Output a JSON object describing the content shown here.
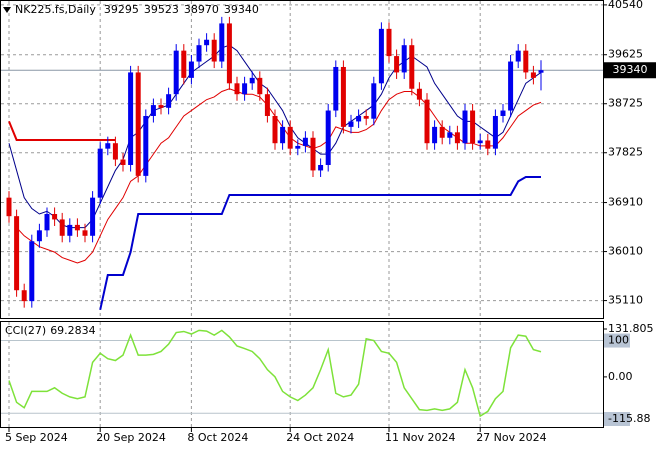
{
  "chart_data": [
    {
      "type": "candlestick",
      "symbol": "NK225.fs,Daily",
      "categories": [
        "5 Sep 2024",
        null,
        null,
        null,
        null,
        null,
        null,
        null,
        null,
        null,
        null,
        null,
        "20 Sep 2024",
        null,
        null,
        null,
        null,
        null,
        null,
        null,
        null,
        null,
        null,
        null,
        "8 Oct 2024",
        null,
        null,
        null,
        null,
        null,
        null,
        null,
        null,
        null,
        null,
        null,
        null,
        "24 Oct 2024",
        null,
        null,
        null,
        null,
        null,
        null,
        null,
        null,
        null,
        null,
        null,
        null,
        "11 Nov 2024",
        null,
        null,
        null,
        null,
        null,
        null,
        null,
        null,
        null,
        null,
        null,
        "27 Nov 2024",
        null,
        null,
        null,
        null,
        null,
        null,
        null,
        null
      ],
      "open": [
        37000,
        36660,
        35300,
        35100,
        36200,
        36400,
        36700,
        36600,
        36300,
        36500,
        36400,
        36300,
        37000,
        37900,
        38000,
        37700,
        37600,
        39300,
        37400,
        38500,
        38700,
        38650,
        38900,
        39700,
        39200,
        39500,
        39800,
        39900,
        39500,
        40200,
        39100,
        38900,
        39100,
        39200,
        38900,
        38500,
        38000,
        38300,
        37900,
        37950,
        38100,
        37500,
        37600,
        38600,
        39400,
        38300,
        38400,
        38500,
        38450,
        39100,
        40100,
        39600,
        39300,
        39800,
        39000,
        38800,
        38000,
        38300,
        38100,
        38200,
        38000,
        38600,
        38000,
        38050,
        37900,
        38500,
        38600,
        39500,
        39700,
        39300,
        39295
      ],
      "high": [
        37120,
        36780,
        35420,
        36320,
        36520,
        36820,
        36820,
        36720,
        36620,
        36620,
        36520,
        37120,
        38020,
        38120,
        38120,
        37820,
        39420,
        39420,
        38620,
        38820,
        38820,
        39020,
        39820,
        39820,
        39620,
        39920,
        40020,
        40020,
        40320,
        40320,
        39220,
        39220,
        39320,
        39320,
        39020,
        38620,
        38420,
        38420,
        38070,
        38220,
        38220,
        37720,
        38720,
        39520,
        39520,
        38520,
        38620,
        38620,
        39220,
        40220,
        40220,
        39720,
        39920,
        39920,
        39120,
        38920,
        38420,
        38420,
        38320,
        38320,
        38720,
        38720,
        38170,
        38170,
        38620,
        38720,
        39620,
        39820,
        39820,
        39420,
        39523
      ],
      "low": [
        36540,
        35180,
        34980,
        34980,
        36080,
        36280,
        36480,
        36180,
        36180,
        36280,
        36180,
        36180,
        36880,
        37780,
        37580,
        37480,
        37480,
        37280,
        37280,
        38380,
        38530,
        38530,
        38780,
        39080,
        39080,
        39380,
        39680,
        39380,
        39380,
        38980,
        38780,
        38780,
        38980,
        38780,
        38380,
        37880,
        37880,
        37780,
        37780,
        37830,
        37380,
        37380,
        37480,
        38480,
        38180,
        38180,
        38280,
        38330,
        38330,
        38980,
        39480,
        39180,
        39180,
        38880,
        38680,
        37880,
        37880,
        37980,
        37980,
        37880,
        37880,
        37880,
        37880,
        37780,
        37780,
        38380,
        38480,
        39380,
        39180,
        39080,
        38970
      ],
      "close": [
        36660,
        35300,
        35100,
        36200,
        36400,
        36700,
        36600,
        36300,
        36500,
        36400,
        36300,
        37000,
        37900,
        38000,
        37700,
        37600,
        39300,
        37400,
        38500,
        38700,
        38650,
        38900,
        39700,
        39200,
        39500,
        39800,
        39900,
        39500,
        40200,
        39100,
        38900,
        39100,
        39200,
        38900,
        38500,
        38000,
        38300,
        37900,
        37950,
        38100,
        37500,
        37600,
        38600,
        39400,
        38300,
        38400,
        38500,
        38450,
        39100,
        40100,
        39600,
        39300,
        39800,
        39000,
        38800,
        38000,
        38300,
        38100,
        38200,
        38000,
        38600,
        38000,
        38050,
        37900,
        38500,
        38600,
        39500,
        39700,
        39300,
        39200,
        39340
      ],
      "up_color": "#0000ee",
      "down_color": "#e00000",
      "ma": [
        {
          "color": "#00008b",
          "values": [
            38000,
            37500,
            37000,
            36800,
            36700,
            36750,
            36650,
            36500,
            36450,
            36450,
            36450,
            36600,
            36900,
            37200,
            37500,
            37700,
            38100,
            38200,
            38400,
            38600,
            38650,
            38700,
            38900,
            39100,
            39300,
            39400,
            39500,
            39600,
            39750,
            39800,
            39700,
            39500,
            39300,
            39100,
            39000,
            38800,
            38600,
            38300,
            38100,
            38000,
            37900,
            37800,
            37800,
            38000,
            38300,
            38400,
            38500,
            38600,
            38700,
            38900,
            39200,
            39400,
            39500,
            39600,
            39500,
            39400,
            39100,
            38900,
            38700,
            38500,
            38400,
            38400,
            38300,
            38200,
            38100,
            38200,
            38500,
            38800,
            39100,
            39200,
            39300
          ]
        },
        {
          "color": "#e00000",
          "values": [
            null,
            36450,
            36300,
            36200,
            36100,
            36050,
            36000,
            35900,
            35850,
            35800,
            35850,
            36000,
            36300,
            36600,
            36800,
            37000,
            37300,
            37400,
            37600,
            37800,
            38000,
            38100,
            38300,
            38500,
            38600,
            38700,
            38800,
            38850,
            38950,
            39000,
            38950,
            38900,
            38900,
            38850,
            38700,
            38500,
            38300,
            38100,
            38000,
            37950,
            37900,
            37950,
            38050,
            38300,
            38250,
            38200,
            38200,
            38250,
            38350,
            38600,
            38800,
            38900,
            38950,
            38950,
            38850,
            38700,
            38500,
            38300,
            38200,
            38100,
            38000,
            38000,
            37950,
            37950,
            37950,
            38100,
            38300,
            38500,
            38600,
            38700,
            38750
          ]
        }
      ],
      "bands": [
        {
          "color": "#0000cd",
          "values": [
            null,
            null,
            null,
            null,
            null,
            null,
            null,
            null,
            null,
            null,
            null,
            null,
            34940,
            35580,
            35580,
            35580,
            36000,
            36700,
            36700,
            36700,
            36700,
            36700,
            36700,
            36700,
            36700,
            36700,
            36700,
            36700,
            36700,
            37050,
            37050,
            37050,
            37050,
            37050,
            37050,
            37050,
            37050,
            37050,
            37050,
            37050,
            37050,
            37050,
            37050,
            37050,
            37050,
            37050,
            37050,
            37050,
            37050,
            37050,
            37050,
            37050,
            37050,
            37050,
            37050,
            37050,
            37050,
            37050,
            37050,
            37050,
            37050,
            37050,
            37050,
            37050,
            37050,
            37050,
            37050,
            37300,
            37380,
            37380,
            37380
          ]
        },
        {
          "color": "#e00000",
          "values": [
            38400,
            38060,
            38060,
            38060,
            38060,
            38060,
            38060,
            38060,
            38060,
            38060,
            38060,
            38060,
            38060,
            38060,
            38060,
            null,
            null,
            null,
            null,
            null,
            null,
            null,
            null,
            null,
            null,
            null,
            null,
            null,
            null,
            null,
            null,
            null,
            null,
            null,
            null,
            null,
            null,
            null,
            null,
            null,
            null,
            null,
            null,
            null,
            null,
            null,
            null,
            null,
            null,
            null,
            null,
            null,
            null,
            null,
            null,
            null,
            null,
            null,
            null,
            null,
            null,
            null,
            null,
            null,
            null,
            null,
            null,
            null,
            null,
            null,
            null
          ]
        }
      ],
      "ylim": [
        34790,
        40630
      ],
      "yticks": [
        35110,
        36010,
        36910,
        37825,
        38725,
        39625,
        40540
      ],
      "grid": true
    },
    {
      "type": "line",
      "title": "CCI(27)",
      "color": "#7ee23a",
      "values": [
        -10,
        -70,
        -85,
        -40,
        -40,
        -40,
        -30,
        -45,
        -55,
        -60,
        -55,
        40,
        65,
        50,
        45,
        60,
        115,
        60,
        60,
        62,
        70,
        90,
        122,
        125,
        118,
        128,
        126,
        115,
        128,
        110,
        85,
        78,
        70,
        50,
        20,
        0,
        -40,
        -55,
        -65,
        -50,
        -30,
        20,
        75,
        -45,
        -55,
        -50,
        -20,
        105,
        100,
        70,
        65,
        40,
        -30,
        -60,
        -90,
        -92,
        -88,
        -92,
        -88,
        -70,
        20,
        -30,
        -108,
        -95,
        -60,
        -40,
        80,
        115,
        112,
        75,
        69.2834
      ],
      "ylim": [
        -115.88,
        131.805
      ],
      "yticks": [
        131.805,
        100,
        {
          "value": 0,
          "label": "0.00"
        },
        -115.88
      ],
      "levels": [
        100,
        -100
      ]
    }
  ]
}
